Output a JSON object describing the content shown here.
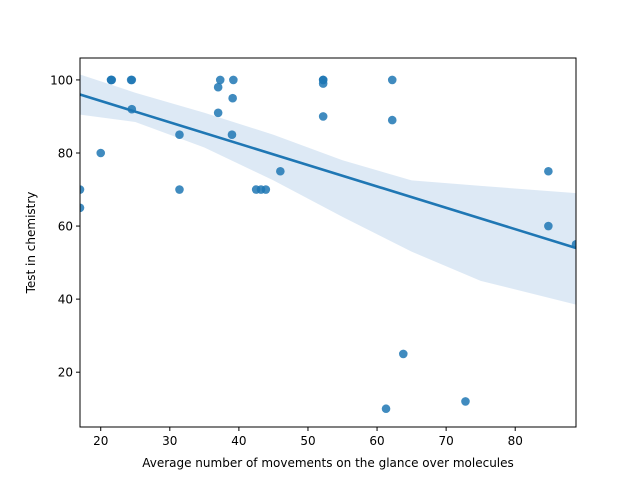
{
  "chart_data": {
    "type": "scatter",
    "title": "",
    "xlabel": "Average number of movements on the glance over molecules",
    "ylabel": "Test in chemistry",
    "xlim": [
      17,
      88.8
    ],
    "ylim": [
      5,
      106
    ],
    "xticks": [
      20,
      30,
      40,
      50,
      60,
      70,
      80
    ],
    "yticks": [
      20,
      40,
      60,
      80,
      100
    ],
    "grid": false,
    "legend": "none",
    "colors": {
      "points": "#1f77b4",
      "regression_line": "#1f77b4",
      "confidence_band": "#c6dbef"
    },
    "points": [
      {
        "x": 17.0,
        "y": 70
      },
      {
        "x": 17.0,
        "y": 65
      },
      {
        "x": 20.0,
        "y": 80
      },
      {
        "x": 21.5,
        "y": 100
      },
      {
        "x": 21.5,
        "y": 100
      },
      {
        "x": 21.6,
        "y": 100
      },
      {
        "x": 24.4,
        "y": 100
      },
      {
        "x": 24.5,
        "y": 100
      },
      {
        "x": 24.5,
        "y": 92
      },
      {
        "x": 31.4,
        "y": 85
      },
      {
        "x": 31.4,
        "y": 70
      },
      {
        "x": 37.0,
        "y": 98
      },
      {
        "x": 37.0,
        "y": 91
      },
      {
        "x": 37.3,
        "y": 100
      },
      {
        "x": 39.0,
        "y": 85
      },
      {
        "x": 39.1,
        "y": 95
      },
      {
        "x": 39.2,
        "y": 100
      },
      {
        "x": 42.5,
        "y": 70
      },
      {
        "x": 43.2,
        "y": 70
      },
      {
        "x": 43.9,
        "y": 70
      },
      {
        "x": 46.0,
        "y": 75
      },
      {
        "x": 52.2,
        "y": 100
      },
      {
        "x": 52.2,
        "y": 100
      },
      {
        "x": 52.2,
        "y": 99
      },
      {
        "x": 52.2,
        "y": 90
      },
      {
        "x": 61.3,
        "y": 10
      },
      {
        "x": 62.2,
        "y": 100
      },
      {
        "x": 62.2,
        "y": 89
      },
      {
        "x": 63.8,
        "y": 25
      },
      {
        "x": 72.8,
        "y": 12
      },
      {
        "x": 84.8,
        "y": 75
      },
      {
        "x": 84.8,
        "y": 60
      },
      {
        "x": 88.8,
        "y": 55
      }
    ],
    "regression": {
      "x": [
        17,
        88.8
      ],
      "y": [
        96,
        54
      ]
    },
    "confidence_band": {
      "x": [
        17,
        25,
        35,
        45,
        55,
        65,
        75,
        88.8
      ],
      "lower": [
        90.5,
        88.5,
        81.5,
        72.5,
        62.5,
        53,
        45,
        38.5
      ],
      "upper": [
        101.5,
        96.5,
        91,
        85,
        78,
        72.5,
        71,
        69
      ]
    }
  }
}
